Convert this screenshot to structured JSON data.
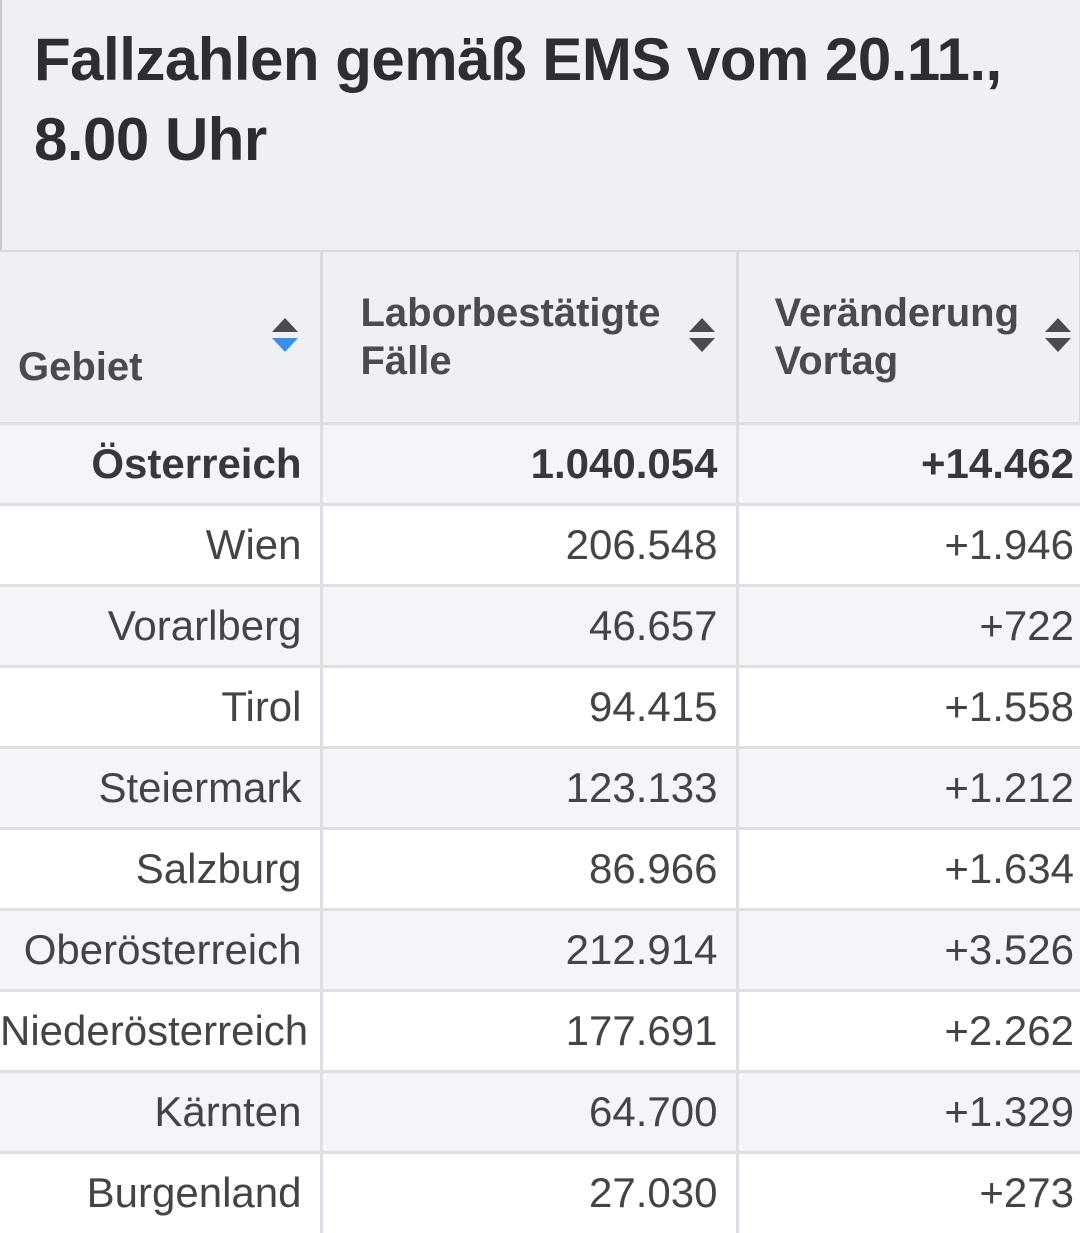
{
  "title": "Fallzahlen gemäß EMS vom 20.11., 8.00 Uhr",
  "table": {
    "headers": [
      "Gebiet",
      "Laborbestätigte Fälle",
      "Veränderung Vortag"
    ],
    "sort": {
      "column": "Gebiet",
      "direction": "descending",
      "active_color": "#3b8fe6"
    },
    "rows": [
      [
        "Österreich",
        "1.040.054",
        "+14.462"
      ],
      [
        "Wien",
        "206.548",
        "+1.946"
      ],
      [
        "Vorarlberg",
        "46.657",
        "+722"
      ],
      [
        "Tirol",
        "94.415",
        "+1.558"
      ],
      [
        "Steiermark",
        "123.133",
        "+1.212"
      ],
      [
        "Salzburg",
        "86.966",
        "+1.634"
      ],
      [
        "Oberösterreich",
        "212.914",
        "+3.526"
      ],
      [
        "Niederösterreich",
        "177.691",
        "+2.262"
      ],
      [
        "Kärnten",
        "64.700",
        "+1.329"
      ],
      [
        "Burgenland",
        "27.030",
        "+273"
      ]
    ]
  }
}
